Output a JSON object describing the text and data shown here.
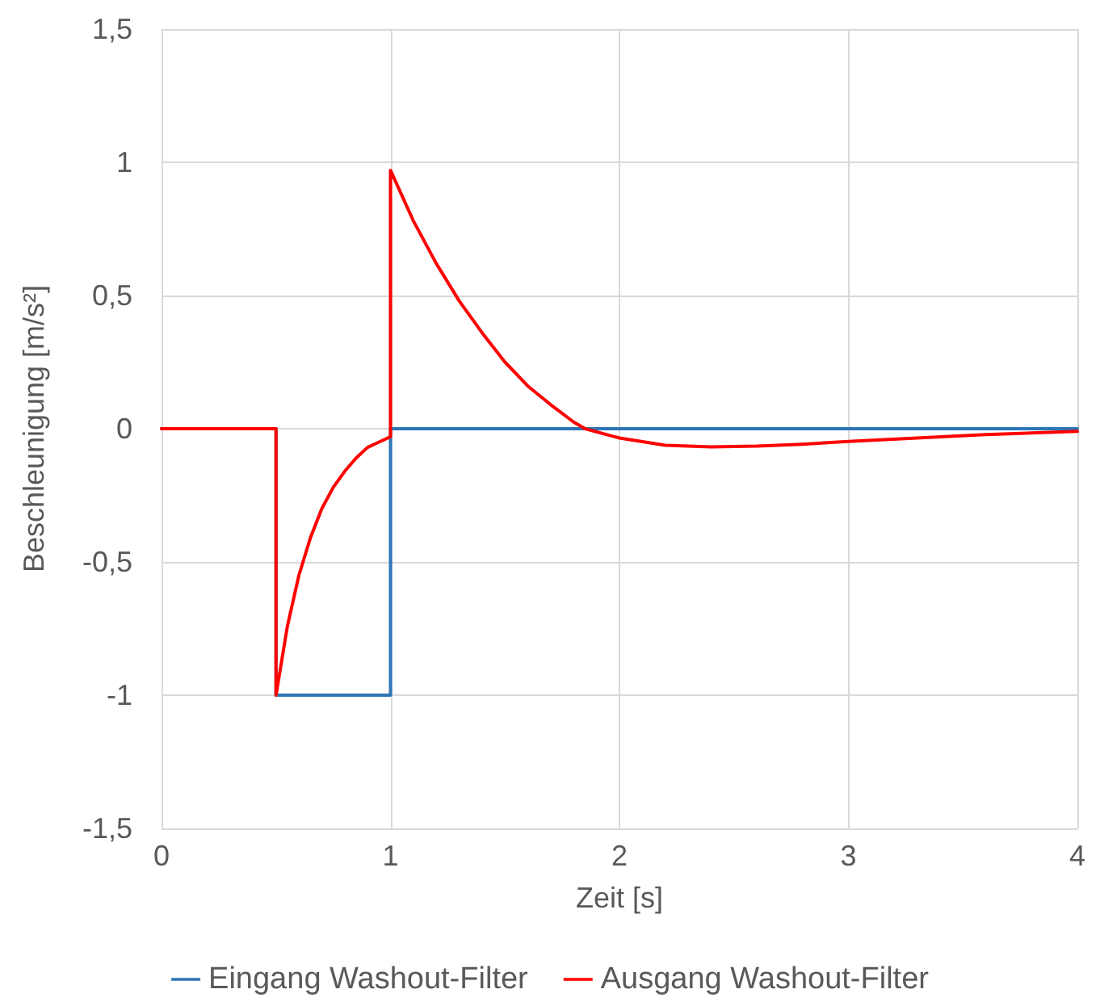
{
  "chart_data": {
    "type": "line",
    "xlabel": "Zeit [s]",
    "ylabel": "Beschleunigung [m/s²]",
    "xlim": [
      0,
      4
    ],
    "xticks": [
      0,
      1,
      2,
      3,
      4
    ],
    "ylim": [
      -1.5,
      1.5
    ],
    "yticks": [
      {
        "value": -1.5,
        "label": "-1,5"
      },
      {
        "value": -1,
        "label": "-1"
      },
      {
        "value": -0.5,
        "label": "-0,5"
      },
      {
        "value": 0,
        "label": "0"
      },
      {
        "value": 0.5,
        "label": "0,5"
      },
      {
        "value": 1,
        "label": "1"
      },
      {
        "value": 1.5,
        "label": "1,5"
      }
    ],
    "grid": true,
    "legend": "bottom",
    "series": [
      {
        "name": "Eingang Washout-Filter",
        "color": "#2e75b6",
        "x": [
          0,
          0.5,
          0.5,
          1,
          1,
          4
        ],
        "values": [
          0,
          0,
          -1,
          -1,
          0,
          0
        ]
      },
      {
        "name": "Ausgang Washout-Filter",
        "color": "#ff0000",
        "x": [
          0,
          0.5,
          0.5,
          0.55,
          0.6,
          0.65,
          0.7,
          0.75,
          0.8,
          0.85,
          0.9,
          0.95,
          1,
          1,
          1.1,
          1.2,
          1.3,
          1.4,
          1.5,
          1.6,
          1.7,
          1.8,
          1.85,
          2,
          2.2,
          2.4,
          2.6,
          2.8,
          3,
          3.3,
          3.6,
          4
        ],
        "values": [
          0,
          0,
          -1,
          -0.74,
          -0.55,
          -0.41,
          -0.3,
          -0.22,
          -0.16,
          -0.11,
          -0.07,
          -0.05,
          -0.03,
          0.97,
          0.78,
          0.62,
          0.48,
          0.36,
          0.25,
          0.16,
          0.09,
          0.025,
          0,
          -0.035,
          -0.062,
          -0.068,
          -0.065,
          -0.058,
          -0.048,
          -0.035,
          -0.022,
          -0.01
        ]
      }
    ]
  }
}
